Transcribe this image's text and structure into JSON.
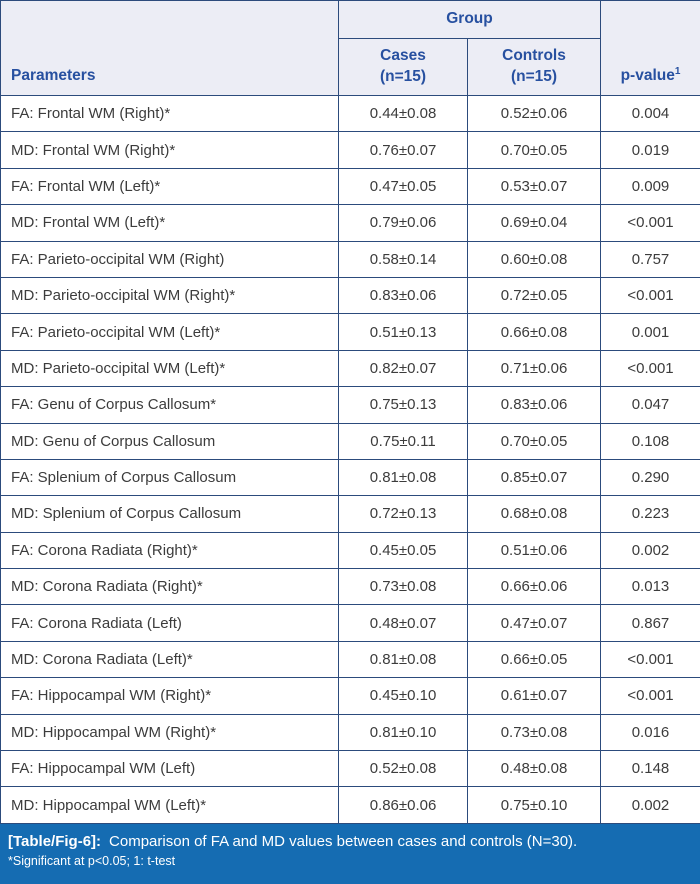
{
  "table": {
    "header": {
      "parameters_label": "Parameters",
      "group_label": "Group",
      "cases_label": "Cases\n(n=15)",
      "controls_label": "Controls\n(n=15)",
      "pvalue_label": "p-value",
      "pvalue_sup": "1"
    },
    "rows": [
      {
        "parameter": "FA: Frontal WM (Right)*",
        "cases": "0.44±0.08",
        "controls": "0.52±0.06",
        "p_value": "0.004"
      },
      {
        "parameter": "MD: Frontal WM (Right)*",
        "cases": "0.76±0.07",
        "controls": "0.70±0.05",
        "p_value": "0.019"
      },
      {
        "parameter": "FA: Frontal WM (Left)*",
        "cases": "0.47±0.05",
        "controls": "0.53±0.07",
        "p_value": "0.009"
      },
      {
        "parameter": "MD: Frontal WM (Left)*",
        "cases": "0.79±0.06",
        "controls": "0.69±0.04",
        "p_value": "<0.001"
      },
      {
        "parameter": "FA: Parieto-occipital WM (Right)",
        "cases": "0.58±0.14",
        "controls": "0.60±0.08",
        "p_value": "0.757"
      },
      {
        "parameter": "MD: Parieto-occipital WM (Right)*",
        "cases": "0.83±0.06",
        "controls": "0.72±0.05",
        "p_value": "<0.001"
      },
      {
        "parameter": "FA: Parieto-occipital WM (Left)*",
        "cases": "0.51±0.13",
        "controls": "0.66±0.08",
        "p_value": "0.001"
      },
      {
        "parameter": "MD: Parieto-occipital WM (Left)*",
        "cases": "0.82±0.07",
        "controls": "0.71±0.06",
        "p_value": "<0.001"
      },
      {
        "parameter": "FA: Genu of Corpus Callosum*",
        "cases": "0.75±0.13",
        "controls": "0.83±0.06",
        "p_value": "0.047"
      },
      {
        "parameter": "MD: Genu of Corpus Callosum",
        "cases": "0.75±0.11",
        "controls": "0.70±0.05",
        "p_value": "0.108"
      },
      {
        "parameter": "FA: Splenium of Corpus Callosum",
        "cases": "0.81±0.08",
        "controls": "0.85±0.07",
        "p_value": "0.290"
      },
      {
        "parameter": "MD: Splenium of Corpus Callosum",
        "cases": "0.72±0.13",
        "controls": "0.68±0.08",
        "p_value": "0.223"
      },
      {
        "parameter": "FA: Corona Radiata (Right)*",
        "cases": "0.45±0.05",
        "controls": "0.51±0.06",
        "p_value": "0.002"
      },
      {
        "parameter": "MD: Corona Radiata (Right)*",
        "cases": "0.73±0.08",
        "controls": "0.66±0.06",
        "p_value": "0.013"
      },
      {
        "parameter": "FA: Corona Radiata (Left)",
        "cases": "0.48±0.07",
        "controls": "0.47±0.07",
        "p_value": "0.867"
      },
      {
        "parameter": "MD: Corona Radiata (Left)*",
        "cases": "0.81±0.08",
        "controls": "0.66±0.05",
        "p_value": "<0.001"
      },
      {
        "parameter": "FA: Hippocampal WM (Right)*",
        "cases": "0.45±0.10",
        "controls": "0.61±0.07",
        "p_value": "<0.001"
      },
      {
        "parameter": "MD: Hippocampal WM (Right)*",
        "cases": "0.81±0.10",
        "controls": "0.73±0.08",
        "p_value": "0.016"
      },
      {
        "parameter": "FA: Hippocampal WM (Left)",
        "cases": "0.52±0.08",
        "controls": "0.48±0.08",
        "p_value": "0.148"
      },
      {
        "parameter": "MD: Hippocampal WM (Left)*",
        "cases": "0.86±0.06",
        "controls": "0.75±0.10",
        "p_value": "0.002"
      }
    ]
  },
  "footer": {
    "label": "[Table/Fig-6]:",
    "caption": "Comparison of FA and MD values between cases and controls (N=30).",
    "note": "*Significant at p<0.05; 1: t-test"
  },
  "colors": {
    "border": "#2c4b7c",
    "header_bg": "#ecedf5",
    "header_text": "#2750a0",
    "body_text": "#3c3c3c",
    "footer_bg": "#156cb2",
    "footer_text": "#ffffff"
  }
}
